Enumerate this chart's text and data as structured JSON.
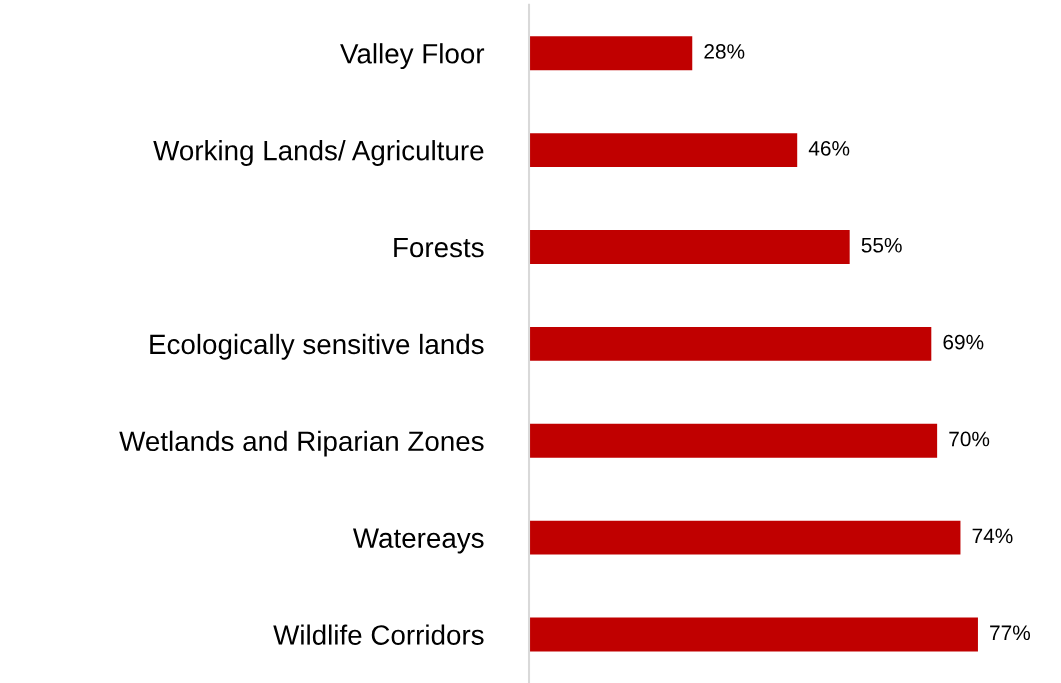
{
  "chart_data": {
    "type": "bar",
    "orientation": "horizontal",
    "categories": [
      "Valley Floor",
      "Working Lands/ Agriculture",
      "Forests",
      "Ecologically sensitive lands",
      "Wetlands and Riparian Zones",
      "Watereays",
      "Wildlife Corridors"
    ],
    "values": [
      28,
      46,
      55,
      69,
      70,
      74,
      77
    ],
    "value_labels": [
      "28%",
      "46%",
      "55%",
      "69%",
      "70%",
      "74%",
      "77%"
    ],
    "color": "#c00000",
    "tick_labels": "y",
    "grid": false,
    "legend": false
  }
}
